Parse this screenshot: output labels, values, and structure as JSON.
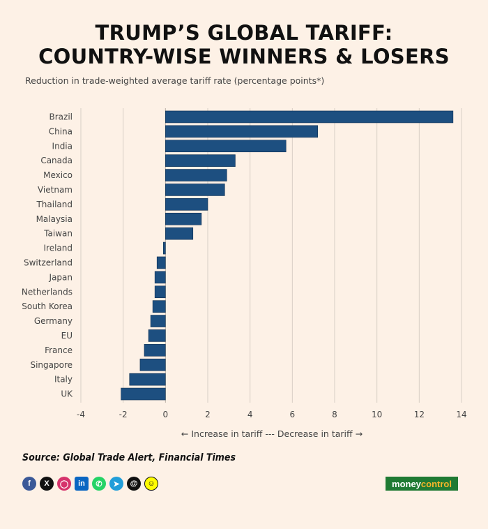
{
  "header": {
    "title_line1": "TRUMP’S GLOBAL TARIFF:",
    "title_line2": "COUNTRY-WISE WINNERS & LOSERS",
    "subtitle": "Reduction in trade-weighted average tariff rate (percentage points*)"
  },
  "chart_data": {
    "type": "bar",
    "orientation": "horizontal",
    "categories": [
      "Brazil",
      "China",
      "India",
      "Canada",
      "Mexico",
      "Vietnam",
      "Thailand",
      "Malaysia",
      "Taiwan",
      "Ireland",
      "Switzerland",
      "Japan",
      "Netherlands",
      "South Korea",
      "Germany",
      "EU",
      "France",
      "Singapore",
      "Italy",
      "UK"
    ],
    "values": [
      13.6,
      7.2,
      5.7,
      3.3,
      2.9,
      2.8,
      2.0,
      1.7,
      1.3,
      -0.1,
      -0.4,
      -0.5,
      -0.5,
      -0.6,
      -0.7,
      -0.8,
      -1.0,
      -1.2,
      -1.7,
      -2.1
    ],
    "xlim": [
      -4,
      14
    ],
    "xticks": [
      -4,
      -2,
      0,
      2,
      4,
      6,
      8,
      10,
      12,
      14
    ],
    "bar_color": "#1d4f80",
    "grid": true,
    "axis_note": "← Increase in tariff --- Decrease in tariff →"
  },
  "footer": {
    "source": "Source: Global Trade Alert, Financial Times",
    "social_icons": [
      "facebook-icon",
      "x-icon",
      "instagram-icon",
      "linkedin-icon",
      "whatsapp-icon",
      "telegram-icon",
      "threads-icon",
      "snapchat-icon"
    ],
    "brand_left": "money",
    "brand_right": "control"
  }
}
